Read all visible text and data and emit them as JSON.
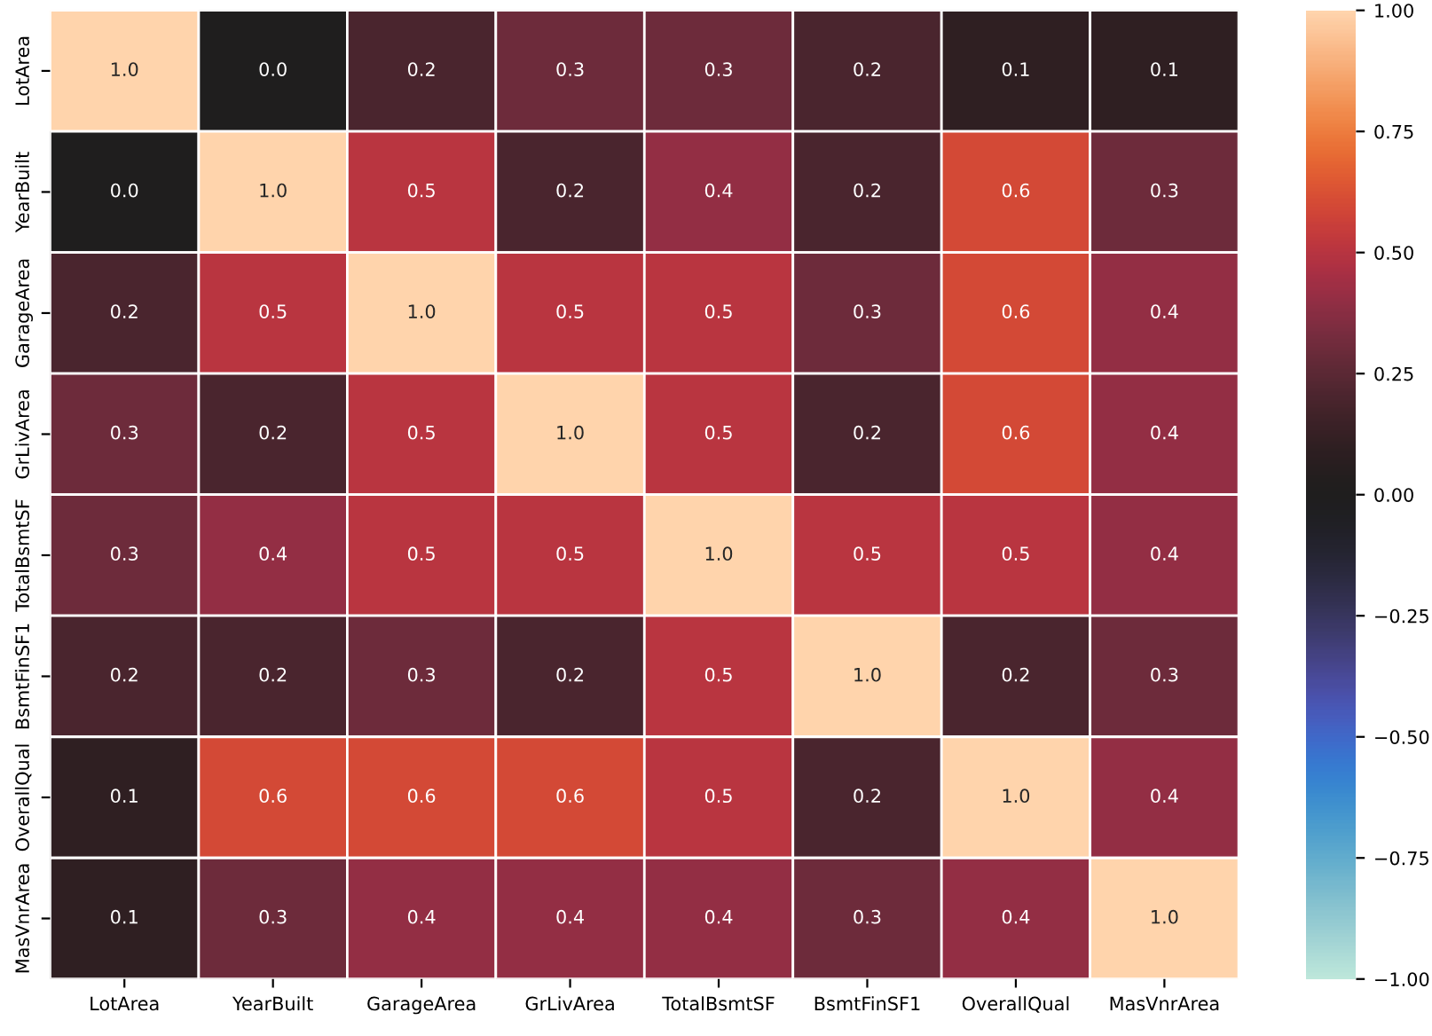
{
  "chart_data": {
    "type": "heatmap",
    "categories": [
      "LotArea",
      "YearBuilt",
      "GarageArea",
      "GrLivArea",
      "TotalBsmtSF",
      "BsmtFinSF1",
      "OverallQual",
      "MasVnrArea"
    ],
    "y_categories": [
      "LotArea",
      "YearBuilt",
      "GarageArea",
      "GrLivArea",
      "TotalBsmtSF",
      "BsmtFinSF1",
      "OverallQual",
      "MasVnrArea"
    ],
    "cells": [
      [
        1.0,
        0.0,
        0.2,
        0.3,
        0.3,
        0.2,
        0.1,
        0.1
      ],
      [
        0.0,
        1.0,
        0.5,
        0.2,
        0.4,
        0.2,
        0.6,
        0.3
      ],
      [
        0.2,
        0.5,
        1.0,
        0.5,
        0.5,
        0.3,
        0.6,
        0.4
      ],
      [
        0.3,
        0.2,
        0.5,
        1.0,
        0.5,
        0.2,
        0.6,
        0.4
      ],
      [
        0.3,
        0.4,
        0.5,
        0.5,
        1.0,
        0.5,
        0.5,
        0.4
      ],
      [
        0.2,
        0.2,
        0.3,
        0.2,
        0.5,
        1.0,
        0.2,
        0.3
      ],
      [
        0.1,
        0.6,
        0.6,
        0.6,
        0.5,
        0.2,
        1.0,
        0.4
      ],
      [
        0.1,
        0.3,
        0.4,
        0.4,
        0.4,
        0.3,
        0.4,
        1.0
      ]
    ],
    "cell_labels": [
      [
        "1.0",
        "0.0",
        "0.2",
        "0.3",
        "0.3",
        "0.2",
        "0.1",
        "0.1"
      ],
      [
        "0.0",
        "1.0",
        "0.5",
        "0.2",
        "0.4",
        "0.2",
        "0.6",
        "0.3"
      ],
      [
        "0.2",
        "0.5",
        "1.0",
        "0.5",
        "0.5",
        "0.3",
        "0.6",
        "0.4"
      ],
      [
        "0.3",
        "0.2",
        "0.5",
        "1.0",
        "0.5",
        "0.2",
        "0.6",
        "0.4"
      ],
      [
        "0.3",
        "0.4",
        "0.5",
        "0.5",
        "1.0",
        "0.5",
        "0.5",
        "0.4"
      ],
      [
        "0.2",
        "0.2",
        "0.3",
        "0.2",
        "0.5",
        "1.0",
        "0.2",
        "0.3"
      ],
      [
        "0.1",
        "0.6",
        "0.6",
        "0.6",
        "0.5",
        "0.2",
        "1.0",
        "0.4"
      ],
      [
        "0.1",
        "0.3",
        "0.4",
        "0.4",
        "0.4",
        "0.3",
        "0.4",
        "1.0"
      ]
    ],
    "clim": [
      -1,
      1
    ],
    "cticks": [
      {
        "value": -1,
        "label": "−1.00"
      },
      {
        "value": -0.75,
        "label": "−0.75"
      },
      {
        "value": -0.5,
        "label": "−0.50"
      },
      {
        "value": -0.25,
        "label": "−0.25"
      },
      {
        "value": 0,
        "label": "0.00"
      },
      {
        "value": 0.25,
        "label": "0.25"
      },
      {
        "value": 0.5,
        "label": "0.50"
      },
      {
        "value": 0.75,
        "label": "0.75"
      },
      {
        "value": 1,
        "label": "1.00"
      }
    ]
  }
}
